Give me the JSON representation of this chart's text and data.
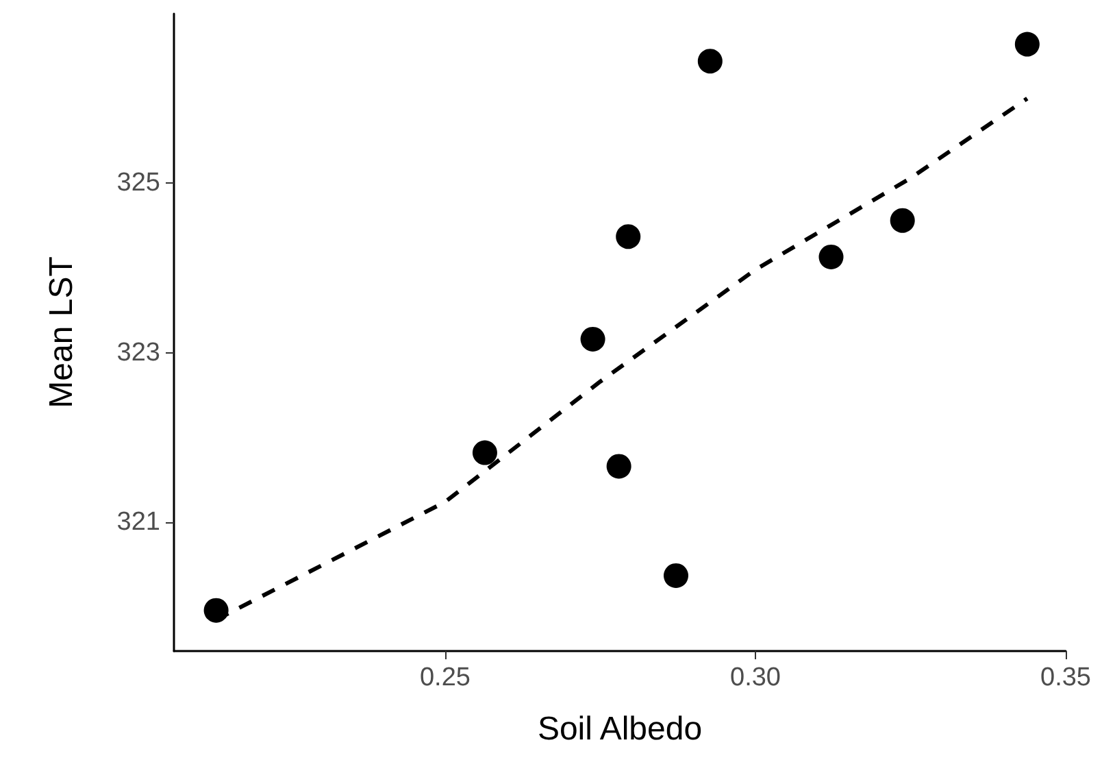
{
  "chart_data": {
    "type": "scatter",
    "xlabel": "Soil Albedo",
    "ylabel": "Mean LST",
    "xlim": [
      0.2063,
      0.35
    ],
    "xticks": [
      0.25,
      {
        "value": 0.3,
        "label": "0.30"
      },
      0.35
    ],
    "ylim": [
      319.48,
      327.0
    ],
    "yticks": [
      321,
      323,
      325
    ],
    "grid": false,
    "marker": "circle",
    "series": [
      {
        "color": "#000000",
        "x": [
          0.2131,
          0.2564,
          0.2738,
          0.278,
          0.2795,
          0.2872,
          0.2927,
          0.3122,
          0.3237,
          0.3438
        ],
        "values": [
          319.96,
          321.82,
          323.16,
          321.66,
          324.37,
          320.37,
          326.44,
          324.13,
          324.56,
          326.64
        ]
      },
      {
        "type": "line",
        "color": "#000000",
        "line_style": "dashed",
        "marker": "none",
        "x": [
          0.2131,
          0.25,
          0.275,
          0.3,
          0.325,
          0.3438
        ],
        "values": [
          319.85,
          321.24,
          322.66,
          323.98,
          325.06,
          326.0
        ]
      }
    ]
  }
}
